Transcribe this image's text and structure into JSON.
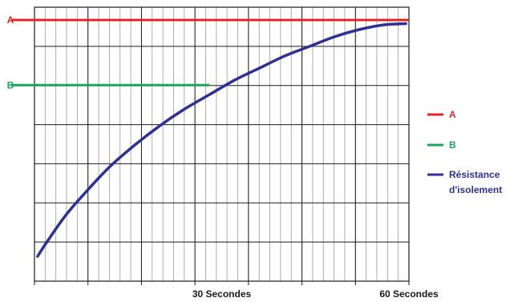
{
  "chart_data": {
    "type": "line",
    "title": "",
    "xlabel": "",
    "ylabel": "",
    "x_tick_labels": [
      {
        "x": 30,
        "label": "30 Secondes"
      },
      {
        "x": 60,
        "label": "60 Secondes"
      }
    ],
    "xlim": [
      0,
      60
    ],
    "ylim": [
      0,
      1
    ],
    "grid": true,
    "series": [
      {
        "name": "A",
        "color": "#e2232a",
        "kind": "horizontal",
        "y": 1.0,
        "x_range": [
          -2,
          60
        ],
        "end_label": "A"
      },
      {
        "name": "B",
        "color": "#1aa557",
        "kind": "horizontal",
        "y": 0.73,
        "x_range": [
          -2,
          28
        ],
        "end_label": "B"
      },
      {
        "name": "Résistance d'isolement",
        "color": "#2e3192",
        "kind": "curve",
        "x": [
          0.5,
          2,
          5,
          8,
          12,
          16,
          20,
          24,
          28,
          32,
          36,
          40,
          44,
          48,
          52,
          56,
          59.5
        ],
        "y": [
          0.02,
          0.08,
          0.19,
          0.28,
          0.39,
          0.48,
          0.56,
          0.63,
          0.69,
          0.75,
          0.8,
          0.85,
          0.89,
          0.93,
          0.96,
          0.98,
          0.985
        ]
      }
    ],
    "legend": {
      "placement": "right",
      "items": [
        {
          "label": "A",
          "color": "#e2232a"
        },
        {
          "label": "B",
          "color": "#1aa557"
        },
        {
          "label_lines": [
            "Résistance",
            "d'isolement"
          ],
          "color": "#2e3192"
        }
      ]
    }
  }
}
